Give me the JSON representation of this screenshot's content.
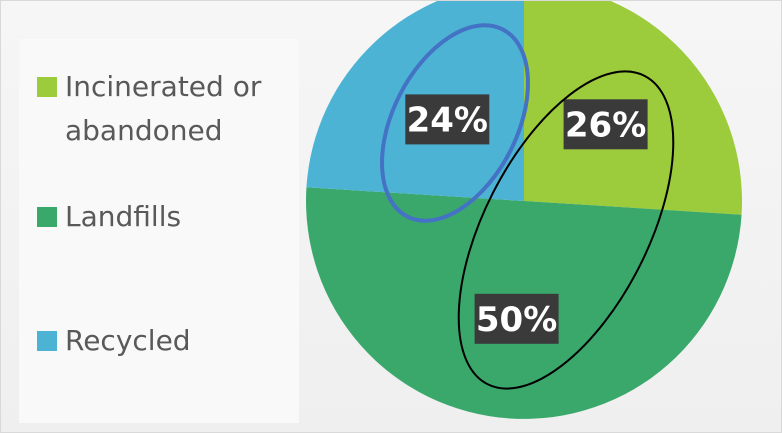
{
  "chart_data": {
    "type": "pie",
    "categories": [
      "Incinerated or abandoned",
      "Landfills",
      "Recycled"
    ],
    "values": [
      26,
      50,
      24
    ],
    "data_labels": [
      "26%",
      "50%",
      "24%"
    ],
    "colors": [
      "#9ccb3b",
      "#3aa86b",
      "#4cb3d4"
    ],
    "start_angle_deg": 0,
    "direction": "clockwise",
    "legend_position": "left",
    "title": "",
    "annotations": [
      {
        "type": "ellipse",
        "around": "Recycled",
        "color": "#4472c4"
      },
      {
        "type": "ellipse",
        "around": [
          "Incinerated or abandoned",
          "Landfills"
        ],
        "color": "#000000"
      }
    ]
  },
  "legend": {
    "items": [
      {
        "label": "Incinerated or\nabandoned",
        "color": "#9ccb3b"
      },
      {
        "label": "Landfills",
        "color": "#3aa86b"
      },
      {
        "label": "Recycled",
        "color": "#4cb3d4"
      }
    ]
  }
}
